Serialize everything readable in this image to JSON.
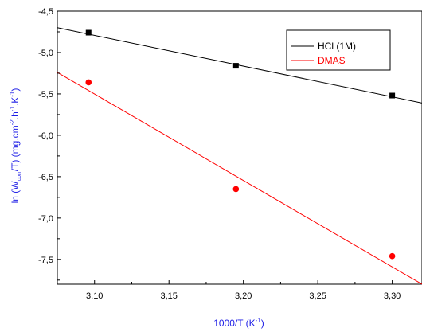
{
  "chart_data": {
    "type": "scatter",
    "xlabel": "1000/T (K",
    "xlabel_sup": "-1",
    "xlabel_tail": ")",
    "ylabel_parts": {
      "a": "ln (W",
      "a_sub": "corr",
      "b": "/T) (mg.cm",
      "b_sup": "-2",
      "c": ".h",
      "c_sup": "-1",
      "d": ".K",
      "d_sup": "-1",
      "e": ")"
    },
    "xlim": [
      3.075,
      3.32
    ],
    "ylim": [
      -7.8,
      -4.5
    ],
    "x_ticks": [
      3.1,
      3.15,
      3.2,
      3.25,
      3.3
    ],
    "x_tick_labels": [
      "3,10",
      "3,15",
      "3,20",
      "3,25",
      "3,30"
    ],
    "y_ticks": [
      -4.5,
      -5.0,
      -5.5,
      -6.0,
      -6.5,
      -7.0,
      -7.5
    ],
    "y_tick_labels": [
      "-4,5",
      "-5,0",
      "-5,5",
      "-6,0",
      "-6,5",
      "-7,0",
      "-7,5"
    ],
    "grid": false,
    "legend_position": "top-right",
    "series": [
      {
        "name": "HCl (1M)",
        "color": "#000000",
        "marker": "square",
        "x": [
          3.096,
          3.195,
          3.3
        ],
        "y": [
          -4.76,
          -5.16,
          -5.52
        ],
        "fit": {
          "x": [
            3.075,
            3.32
          ],
          "y": [
            -4.7,
            -5.61
          ]
        }
      },
      {
        "name": "DMAS",
        "color": "#ff0000",
        "marker": "circle",
        "x": [
          3.096,
          3.195,
          3.3
        ],
        "y": [
          -5.36,
          -6.65,
          -7.46
        ],
        "fit": {
          "x": [
            3.075,
            3.32
          ],
          "y": [
            -5.24,
            -7.8
          ]
        }
      }
    ]
  }
}
